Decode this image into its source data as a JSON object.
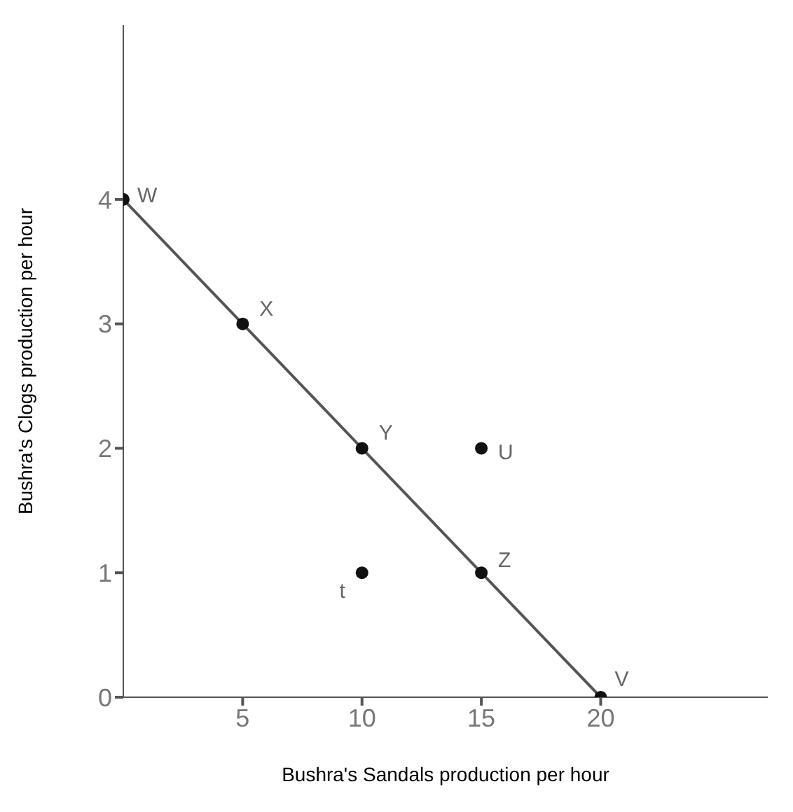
{
  "chart_data": {
    "type": "scatter",
    "xlabel": "Bushra's Sandals production per hour",
    "ylabel": "Bushra's Clogs production per hour",
    "marker": "circle",
    "xlim": [
      0,
      27
    ],
    "ylim": [
      0,
      5.4
    ],
    "xticks": [
      5,
      10,
      15,
      20
    ],
    "yticks": [
      0,
      1,
      2,
      3,
      4
    ],
    "grid": false,
    "series": [
      {
        "type": "line",
        "color": "#555555",
        "x": [
          0,
          20
        ],
        "values": [
          4,
          0
        ],
        "marker": "none"
      },
      {
        "color": "#111111",
        "x": [
          0,
          5,
          10,
          15,
          20,
          15,
          10
        ],
        "values": [
          4,
          3,
          2,
          1,
          0,
          2,
          1
        ]
      }
    ],
    "annotations": [
      {
        "text": "W",
        "x": 0,
        "y": 4
      },
      {
        "text": "X",
        "x": 5,
        "y": 3
      },
      {
        "text": "Y",
        "x": 10,
        "y": 2
      },
      {
        "text": "Z",
        "x": 15,
        "y": 1
      },
      {
        "text": "V",
        "x": 20,
        "y": 0
      },
      {
        "text": "U",
        "x": 15,
        "y": 2
      },
      {
        "text": "t",
        "x": 10,
        "y": 1
      }
    ]
  }
}
